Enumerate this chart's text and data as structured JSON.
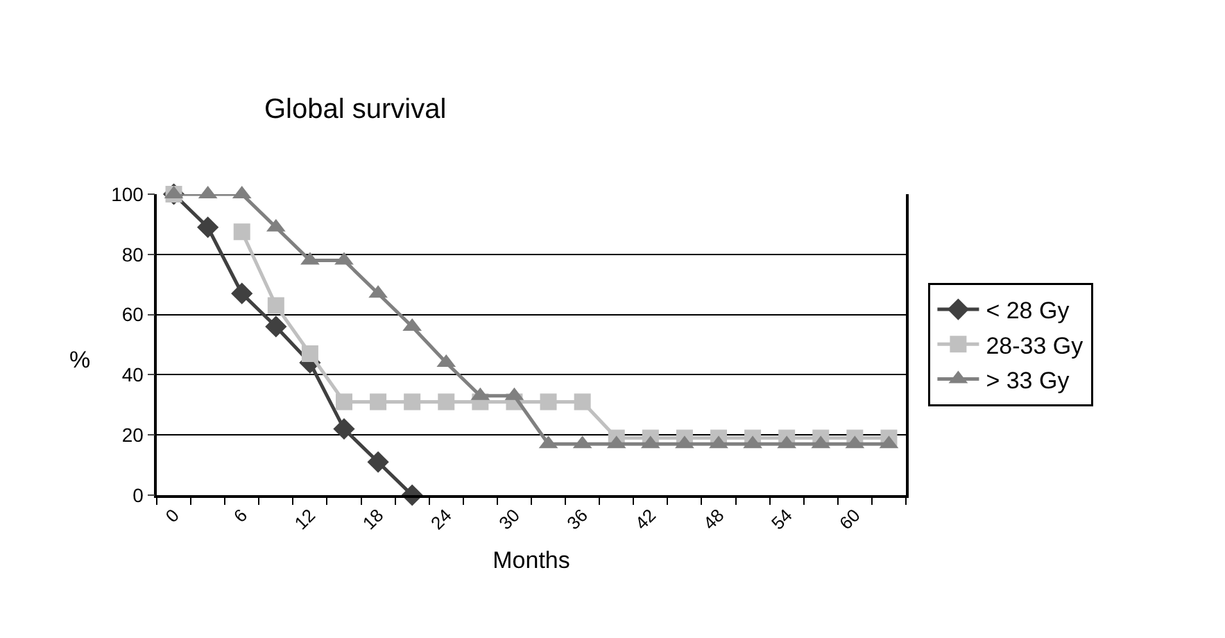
{
  "chart_data": {
    "type": "line",
    "title": "Global survival",
    "xlabel": "Months",
    "ylabel": "%",
    "categories": [
      "0",
      null,
      "6",
      null,
      "12",
      null,
      "18",
      null,
      "24",
      null,
      "30",
      null,
      "36",
      null,
      "42",
      null,
      "48",
      null,
      "54",
      null,
      "60",
      null
    ],
    "series": [
      {
        "name": "< 28 Gy",
        "color": "#404040",
        "marker": "diamond",
        "values": [
          100,
          89,
          67,
          56,
          44,
          22,
          11,
          0,
          null,
          null,
          null,
          null,
          null,
          null,
          null,
          null,
          null,
          null,
          null,
          null,
          null,
          null
        ]
      },
      {
        "name": "28-33 Gy",
        "color": "#c0c0c0",
        "marker": "square",
        "values": [
          100,
          null,
          87.5,
          63,
          47,
          31,
          31,
          31,
          31,
          31,
          31,
          31,
          31,
          19,
          19,
          19,
          19,
          19,
          19,
          19,
          19,
          19
        ]
      },
      {
        "name": "> 33 Gy",
        "color": "#808080",
        "marker": "triangle",
        "values": [
          100,
          100,
          100,
          89,
          78,
          78,
          67,
          56,
          44,
          33,
          33,
          17,
          17,
          17,
          17,
          17,
          17,
          17,
          17,
          17,
          17,
          17
        ]
      }
    ],
    "ylim": [
      0,
      100
    ],
    "yticks": [
      0,
      20,
      40,
      60,
      80,
      100
    ],
    "grid": "y",
    "legend": "right",
    "line_style": "solid"
  }
}
